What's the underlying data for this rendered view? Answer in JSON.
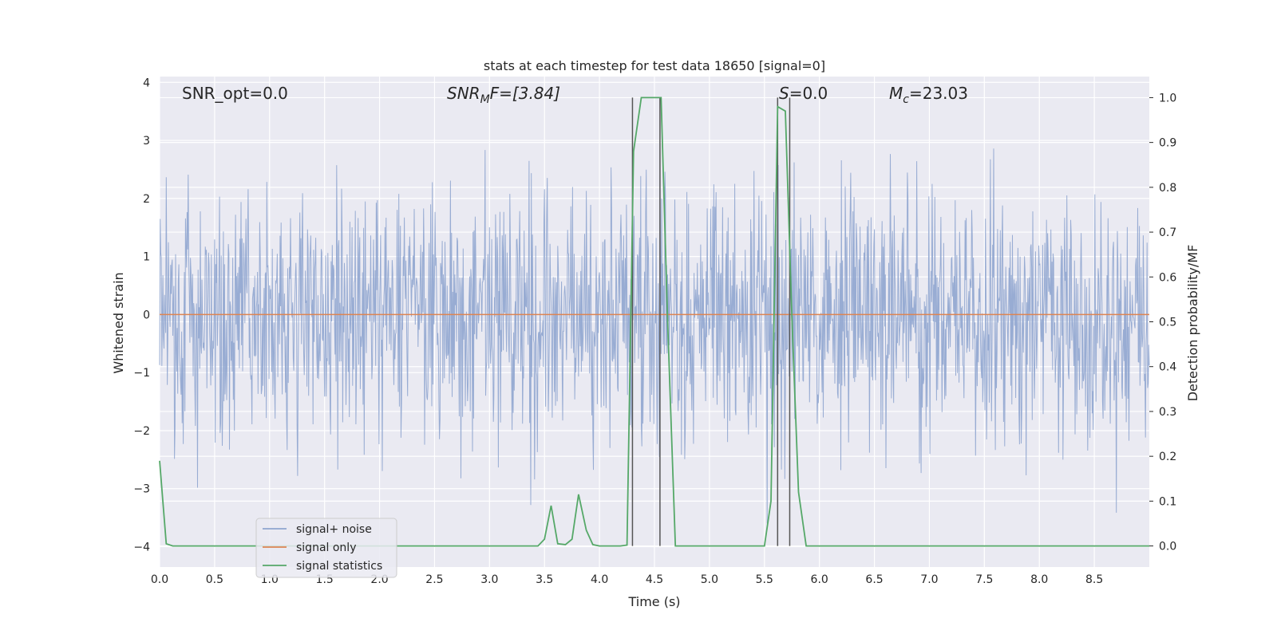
{
  "chart_data": {
    "type": "line",
    "title": "stats at each timestep for test data 18650 [signal=0]",
    "xlabel": "Time (s)",
    "ylabel_left": "Whitened strain",
    "ylabel_right": "Detection probability/MF",
    "xlim": [
      0,
      9.0
    ],
    "ylim_left": [
      -4.35,
      4.1
    ],
    "ylim_right": [
      -0.047,
      1.047
    ],
    "x_ticks": [
      "0.0",
      "0.5",
      "1.0",
      "1.5",
      "2.0",
      "2.5",
      "3.0",
      "3.5",
      "4.0",
      "4.5",
      "5.0",
      "5.5",
      "6.0",
      "6.5",
      "7.0",
      "7.5",
      "8.0",
      "8.5"
    ],
    "y_ticks_left": [
      "−4",
      "−3",
      "−2",
      "−1",
      "0",
      "1",
      "2",
      "3",
      "4"
    ],
    "y_ticks_right": [
      "0.0",
      "0.1",
      "0.2",
      "0.3",
      "0.4",
      "0.5",
      "0.6",
      "0.7",
      "0.8",
      "0.9",
      "1.0"
    ],
    "grid": true,
    "legend_position": "lower-left",
    "annotations": {
      "snr_opt": "SNR_opt=0.0",
      "snr_mf_base": "SNR",
      "snr_mf_sub": "M",
      "snr_mf_rest": "F=[3.84]",
      "s_label_base": "S",
      "s_label_rest": "=0.0",
      "mc_base": "M",
      "mc_sub": "c",
      "mc_rest": "=23.03"
    },
    "series": [
      {
        "name": "signal+ noise",
        "color": "#8fa5cf",
        "axis": "left",
        "description_range": [
          -3.6,
          3.6
        ]
      },
      {
        "name": "signal only",
        "color": "#dd8452",
        "axis": "left",
        "x": [
          0,
          9.0
        ],
        "y": [
          0,
          0
        ]
      },
      {
        "name": "signal statistics",
        "color": "#55a868",
        "axis": "right",
        "x": [
          0.0,
          0.06,
          0.12,
          0.25,
          0.5,
          1.0,
          1.5,
          2.0,
          2.5,
          3.0,
          3.44,
          3.5,
          3.56,
          3.62,
          3.69,
          3.75,
          3.81,
          3.88,
          3.94,
          4.0,
          4.1,
          4.19,
          4.25,
          4.31,
          4.38,
          4.44,
          4.5,
          4.56,
          4.62,
          4.69,
          4.75,
          5.0,
          5.25,
          5.5,
          5.56,
          5.62,
          5.69,
          5.75,
          5.81,
          5.88,
          6.0,
          6.5,
          7.0,
          7.5,
          8.0,
          8.5,
          9.0
        ],
        "y": [
          0.19,
          0.005,
          0.0,
          0.0,
          0.0,
          0.0,
          0.0,
          0.0,
          0.0,
          0.0,
          0.0,
          0.015,
          0.09,
          0.005,
          0.003,
          0.015,
          0.115,
          0.035,
          0.003,
          0.0,
          0.0,
          0.0,
          0.002,
          0.88,
          1.0,
          1.0,
          1.0,
          1.0,
          0.5,
          0.0,
          0.0,
          0.0,
          0.0,
          0.0,
          0.1,
          0.98,
          0.97,
          0.51,
          0.12,
          0.0,
          0.0,
          0.0,
          0.0,
          0.0,
          0.0,
          0.0,
          0.0
        ]
      }
    ],
    "vertical_markers_x": [
      4.3,
      4.55,
      5.62,
      5.73
    ],
    "vertical_marker_color": "#555555",
    "legend": [
      "signal+ noise",
      "signal only",
      "signal statistics"
    ]
  }
}
